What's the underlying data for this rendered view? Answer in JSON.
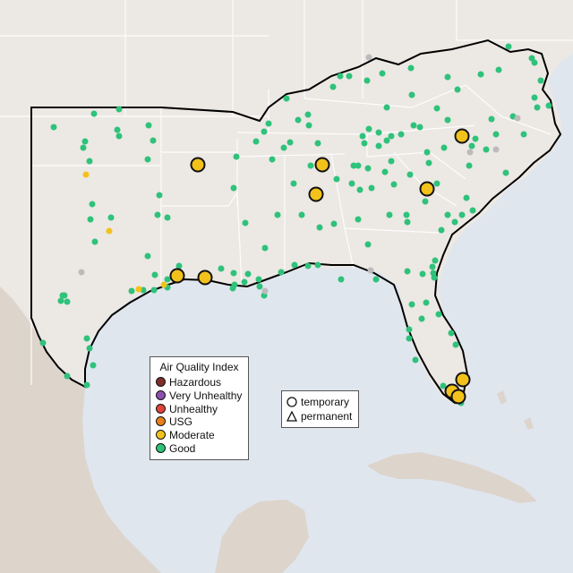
{
  "legend": {
    "title": "Air Quality Index",
    "categories": [
      {
        "label": "Hazardous",
        "color": "#7e2d2d"
      },
      {
        "label": "Very Unhealthy",
        "color": "#8e4fb0"
      },
      {
        "label": "Unhealthy",
        "color": "#e0443a"
      },
      {
        "label": "USG",
        "color": "#e8801c"
      },
      {
        "label": "Moderate",
        "color": "#f2c21b"
      },
      {
        "label": "Good",
        "color": "#2ec27a"
      }
    ],
    "site_types": [
      {
        "label": "temporary",
        "icon": "circle-icon"
      },
      {
        "label": "permanent",
        "icon": "triangle-icon"
      }
    ]
  },
  "colors": {
    "water": "#dfe6ee",
    "land": "#ece8e4",
    "mexico_land": "#ddd4cc",
    "region_border": "#000000",
    "state_lines": "#ffffff",
    "inactive_site": "#bbbbbb"
  }
}
